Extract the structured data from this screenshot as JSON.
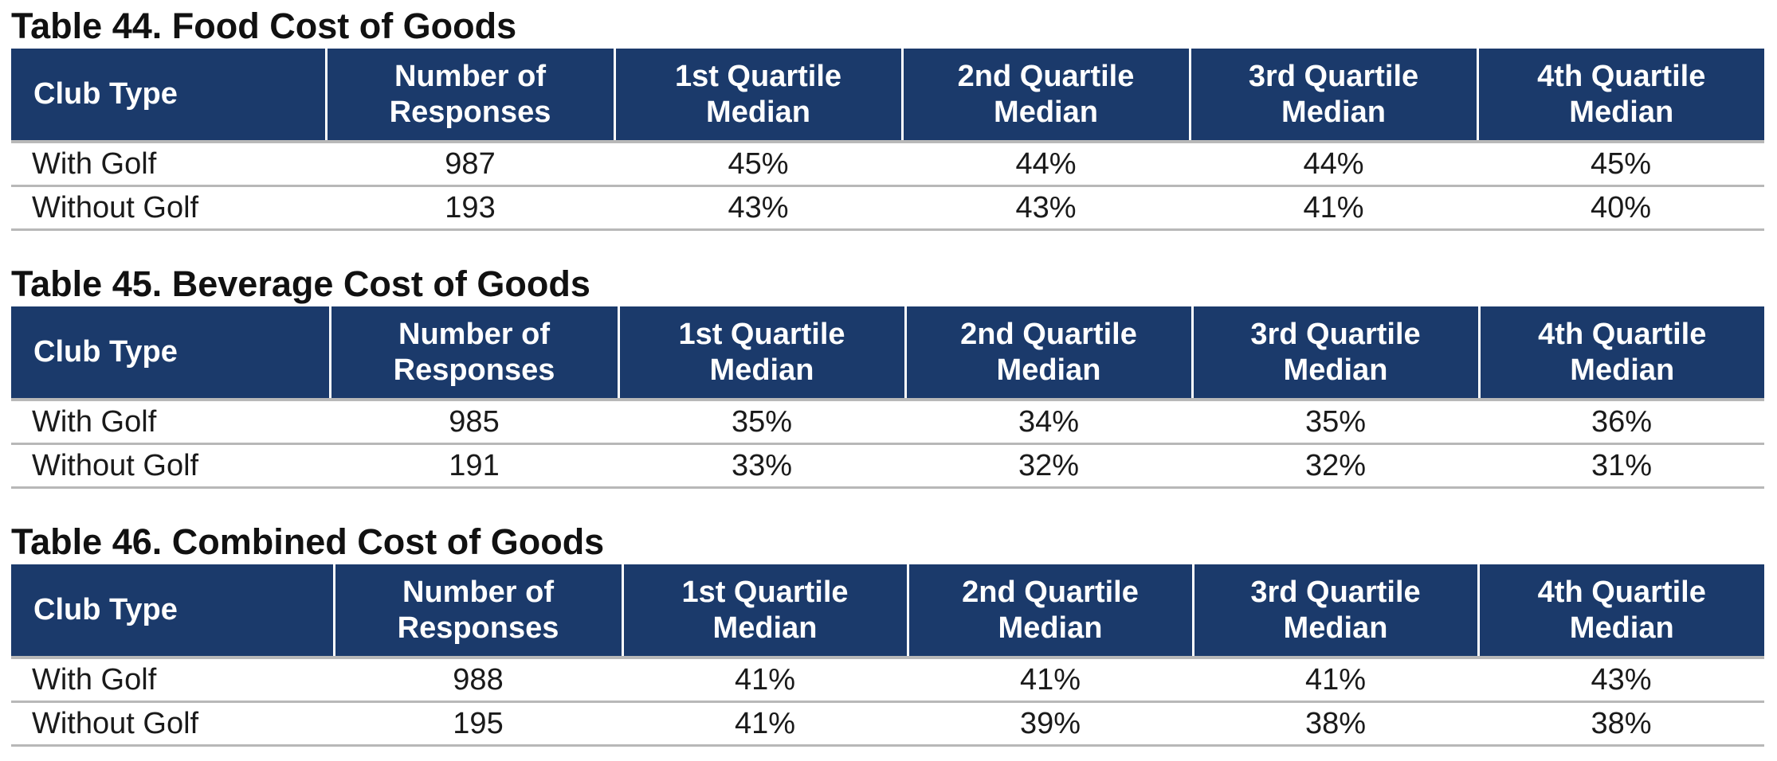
{
  "columns": [
    "Club Type",
    "Number of Responses",
    "1st Quartile Median",
    "2nd Quartile Median",
    "3rd Quartile Median",
    "4th Quartile Median"
  ],
  "tables": [
    {
      "title": "Table 44. Food Cost of Goods",
      "rows": [
        [
          "With Golf",
          "987",
          "45%",
          "44%",
          "44%",
          "45%"
        ],
        [
          "Without Golf",
          "193",
          "43%",
          "43%",
          "41%",
          "40%"
        ]
      ]
    },
    {
      "title": "Table 45. Beverage Cost of Goods",
      "rows": [
        [
          "With Golf",
          "985",
          "35%",
          "34%",
          "35%",
          "36%"
        ],
        [
          "Without Golf",
          "191",
          "33%",
          "32%",
          "32%",
          "31%"
        ]
      ]
    },
    {
      "title": "Table 46. Combined Cost of Goods",
      "rows": [
        [
          "With Golf",
          "988",
          "41%",
          "41%",
          "41%",
          "43%"
        ],
        [
          "Without Golf",
          "195",
          "41%",
          "39%",
          "38%",
          "38%"
        ]
      ]
    }
  ]
}
